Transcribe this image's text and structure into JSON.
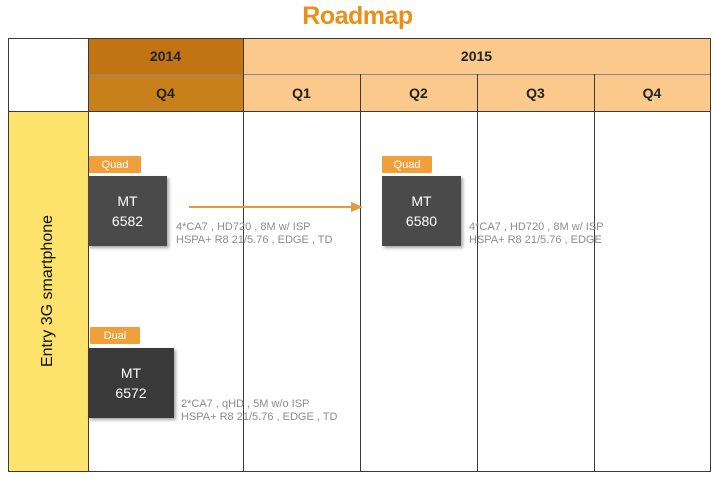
{
  "title": "Roadmap",
  "colors": {
    "title": "#e8901a",
    "year_2014_fill": "#c07412",
    "quarter_2014_fill": "#c8801a",
    "year_2015_fill": "#fbc98c",
    "row_label_fill": "#fde26c",
    "chip_tag": "#f0a03a",
    "chip_box": "#4a4a4a",
    "chip_box_dark": "#3a3a3a",
    "arrow": "#e39a3c"
  },
  "header": {
    "years": [
      {
        "label": "2014"
      },
      {
        "label": "2015"
      }
    ],
    "quarters": [
      {
        "label": "Q4"
      },
      {
        "label": "Q1"
      },
      {
        "label": "Q2"
      },
      {
        "label": "Q3"
      },
      {
        "label": "Q4"
      }
    ]
  },
  "row": {
    "label": "Entry 3G smartphone"
  },
  "chips": [
    {
      "tag": "Quad",
      "line1": "MT",
      "line2": "6582",
      "spec1": "4*CA7 , HD720 , 8M w/ ISP",
      "spec2": "HSPA+ R8 21/5.76 , EDGE , TD"
    },
    {
      "tag": "Quad",
      "line1": "MT",
      "line2": "6580",
      "spec1": "4*CA7 , HD720 , 8M w/ ISP",
      "spec2": "HSPA+ R8 21/5.76 , EDGE"
    },
    {
      "tag": "Dual",
      "line1": "MT",
      "line2": "6572",
      "spec1": "2*CA7 , qHD , 5M w/o ISP",
      "spec2": "HSPA+ R8 21/5.76 , EDGE , TD"
    }
  ]
}
